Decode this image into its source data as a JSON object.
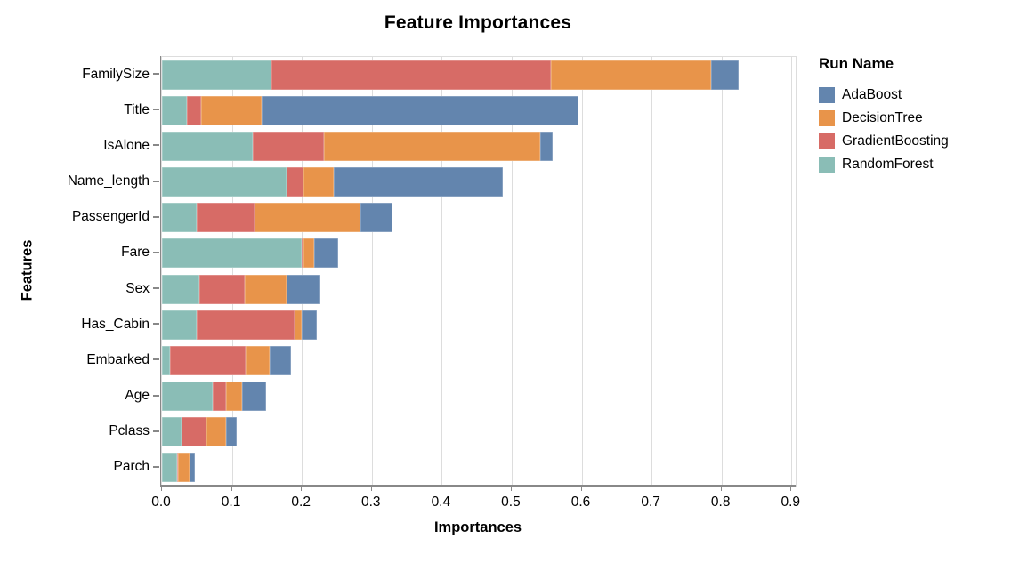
{
  "title": "Feature Importances",
  "axes": {
    "x_title": "Importances",
    "y_title": "Features"
  },
  "legend": {
    "title": "Run Name",
    "entries": [
      {
        "label": "AdaBoost",
        "color": "#6385AE"
      },
      {
        "label": "DecisionTree",
        "color": "#E8944A"
      },
      {
        "label": "GradientBoosting",
        "color": "#D76B66"
      },
      {
        "label": "RandomForest",
        "color": "#8ABDB6"
      }
    ]
  },
  "chart_data": {
    "type": "bar",
    "orientation": "horizontal",
    "stacked": true,
    "title": "Feature Importances",
    "xlabel": "Importances",
    "ylabel": "Features",
    "legend_title": "Run Name",
    "legend_position": "right",
    "grid": true,
    "xlim": [
      0,
      0.906
    ],
    "xticks": [
      0.0,
      0.1,
      0.2,
      0.3,
      0.4,
      0.5,
      0.6,
      0.7,
      0.8,
      0.9
    ],
    "categories": [
      "FamilySize",
      "Title",
      "IsAlone",
      "Name_length",
      "PassengerId",
      "Fare",
      "Sex",
      "Has_Cabin",
      "Embarked",
      "Age",
      "Pclass",
      "Parch"
    ],
    "stack_order_left_to_right": [
      "RandomForest",
      "GradientBoosting",
      "DecisionTree",
      "AdaBoost"
    ],
    "series": [
      {
        "name": "RandomForest",
        "color": "#8ABDB6",
        "values": [
          0.156,
          0.035,
          0.13,
          0.178,
          0.05,
          0.2,
          0.054,
          0.05,
          0.012,
          0.073,
          0.028,
          0.021
        ]
      },
      {
        "name": "GradientBoosting",
        "color": "#D76B66",
        "values": [
          0.4,
          0.021,
          0.102,
          0.024,
          0.082,
          0.002,
          0.064,
          0.14,
          0.108,
          0.018,
          0.035,
          0.002
        ]
      },
      {
        "name": "DecisionTree",
        "color": "#E8944A",
        "values": [
          0.229,
          0.086,
          0.309,
          0.043,
          0.152,
          0.016,
          0.06,
          0.01,
          0.034,
          0.023,
          0.028,
          0.016
        ]
      },
      {
        "name": "AdaBoost",
        "color": "#6385AE",
        "values": [
          0.04,
          0.454,
          0.017,
          0.242,
          0.046,
          0.034,
          0.048,
          0.021,
          0.031,
          0.035,
          0.016,
          0.008
        ]
      }
    ],
    "stack_totals": [
      0.825,
      0.596,
      0.558,
      0.487,
      0.33,
      0.252,
      0.226,
      0.221,
      0.185,
      0.149,
      0.107,
      0.047
    ]
  },
  "style_colors": {
    "grid": "#dddddd",
    "domain": "#888888",
    "view_border": "#dddddd",
    "text": "#000000"
  }
}
